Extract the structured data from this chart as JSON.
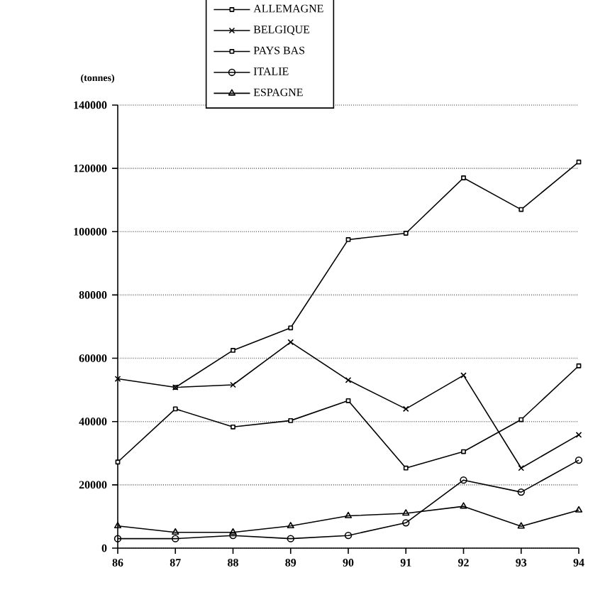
{
  "chart_data": {
    "type": "line",
    "ylabel": "(tonnes)",
    "categories": [
      "86",
      "87",
      "88",
      "89",
      "90",
      "91",
      "92",
      "93",
      "94"
    ],
    "series": [
      {
        "name": "ALLEMAGNE",
        "color": "#000000",
        "marker": "square",
        "values": [
          null,
          50800,
          62500,
          69600,
          97500,
          99500,
          117000,
          107000,
          122000
        ]
      },
      {
        "name": "BELGIQUE",
        "color": "#000000",
        "marker": "cross",
        "values": [
          53500,
          50800,
          51600,
          65100,
          53100,
          44000,
          54600,
          25300,
          35800
        ]
      },
      {
        "name": "PAYS BAS",
        "color": "#000000",
        "marker": "square",
        "values": [
          27200,
          44000,
          38300,
          40300,
          46600,
          25300,
          30500,
          40600,
          57600
        ]
      },
      {
        "name": "ITALIE",
        "color": "#000000",
        "marker": "circle",
        "values": [
          3000,
          3000,
          4000,
          3000,
          4000,
          8000,
          21500,
          17700,
          27800
        ]
      },
      {
        "name": "ESPAGNE",
        "color": "#000000",
        "marker": "triangle",
        "values": [
          7000,
          5000,
          5000,
          7000,
          10200,
          11000,
          13200,
          6900,
          12000
        ]
      }
    ],
    "ylim": [
      0,
      140000
    ],
    "yticks": [
      0,
      20000,
      40000,
      60000,
      80000,
      100000,
      120000,
      140000
    ],
    "grid": "y",
    "legend": "top",
    "line_style": "solid"
  }
}
